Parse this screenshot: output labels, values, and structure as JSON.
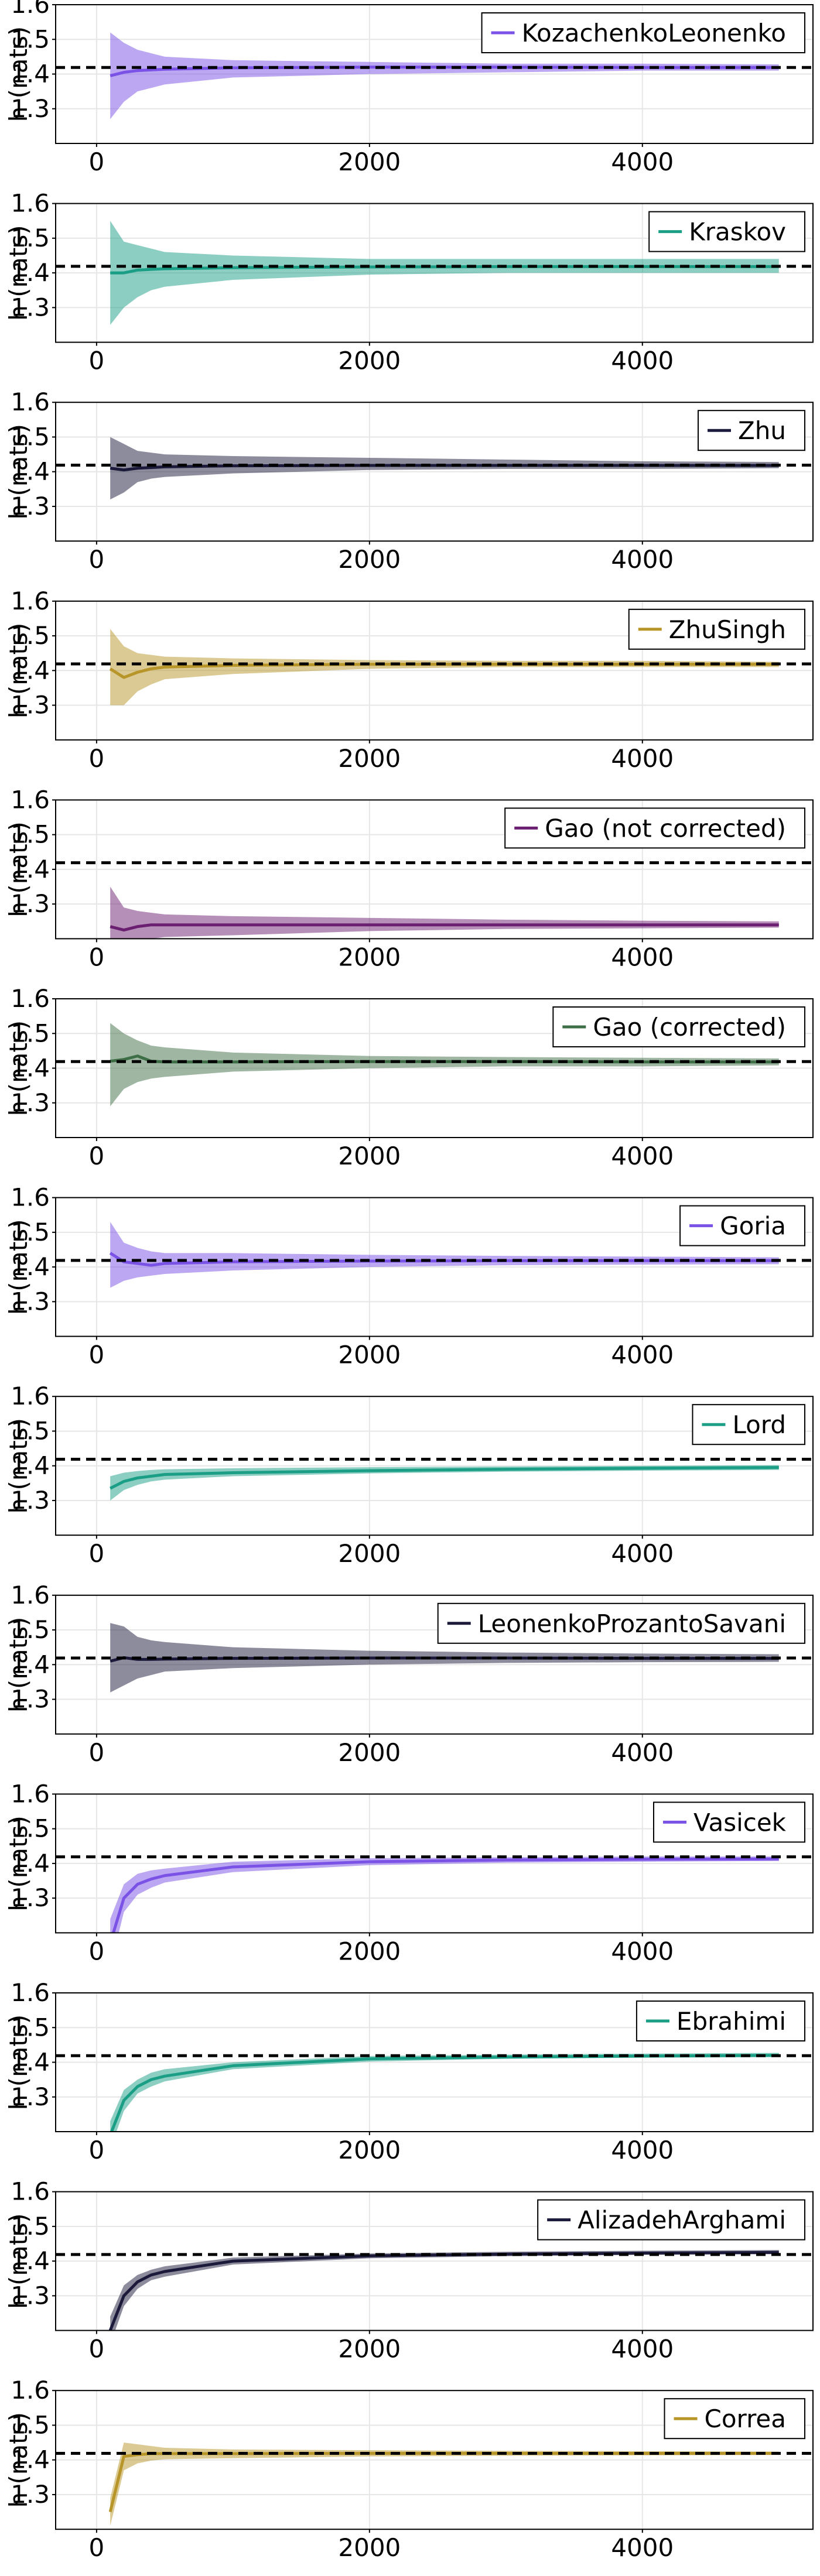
{
  "chart_data": [
    {
      "type": "line",
      "ylabel": "h (nats)",
      "xlim": [
        -300,
        5250
      ],
      "ylim": [
        1.2,
        1.6
      ],
      "x_ticks": [
        0,
        2000,
        4000
      ],
      "y_ticks": [
        1.3,
        1.4,
        1.5,
        1.6
      ],
      "grid": true,
      "legend_placement": "top-right",
      "reference_line": 1.419,
      "series": [
        {
          "name": "KozachenkoLeonenko",
          "color": "#7a52e6",
          "x": [
            100,
            200,
            300,
            400,
            500,
            1000,
            2000,
            3000,
            4000,
            5000
          ],
          "mean": [
            1.395,
            1.405,
            1.41,
            1.412,
            1.414,
            1.418,
            1.42,
            1.42,
            1.419,
            1.419
          ],
          "lower": [
            1.27,
            1.32,
            1.35,
            1.36,
            1.37,
            1.39,
            1.4,
            1.405,
            1.41,
            1.41
          ],
          "upper": [
            1.52,
            1.49,
            1.47,
            1.46,
            1.45,
            1.44,
            1.435,
            1.43,
            1.43,
            1.428
          ]
        }
      ]
    },
    {
      "type": "line",
      "ylabel": "h (nats)",
      "xlim": [
        -300,
        5250
      ],
      "ylim": [
        1.2,
        1.6
      ],
      "x_ticks": [
        0,
        2000,
        4000
      ],
      "y_ticks": [
        1.3,
        1.4,
        1.5,
        1.6
      ],
      "grid": true,
      "legend_placement": "top-right",
      "reference_line": 1.419,
      "series": [
        {
          "name": "Kraskov",
          "color": "#1a9e85",
          "x": [
            100,
            200,
            300,
            400,
            500,
            1000,
            2000,
            3000,
            4000,
            5000
          ],
          "mean": [
            1.4,
            1.4,
            1.408,
            1.41,
            1.412,
            1.415,
            1.417,
            1.418,
            1.418,
            1.418
          ],
          "lower": [
            1.25,
            1.3,
            1.33,
            1.35,
            1.36,
            1.38,
            1.395,
            1.4,
            1.4,
            1.4
          ],
          "upper": [
            1.55,
            1.49,
            1.48,
            1.47,
            1.46,
            1.45,
            1.44,
            1.44,
            1.44,
            1.44
          ]
        }
      ]
    },
    {
      "type": "line",
      "ylabel": "h (nats)",
      "xlim": [
        -300,
        5250
      ],
      "ylim": [
        1.2,
        1.6
      ],
      "x_ticks": [
        0,
        2000,
        4000
      ],
      "y_ticks": [
        1.3,
        1.4,
        1.5,
        1.6
      ],
      "grid": true,
      "legend_placement": "top-right",
      "reference_line": 1.419,
      "series": [
        {
          "name": "Zhu",
          "color": "#1c1a3b",
          "x": [
            100,
            200,
            300,
            400,
            500,
            1000,
            2000,
            3000,
            4000,
            5000
          ],
          "mean": [
            1.41,
            1.405,
            1.41,
            1.412,
            1.414,
            1.417,
            1.418,
            1.418,
            1.418,
            1.418
          ],
          "lower": [
            1.32,
            1.34,
            1.37,
            1.38,
            1.385,
            1.395,
            1.405,
            1.408,
            1.408,
            1.41
          ],
          "upper": [
            1.5,
            1.48,
            1.46,
            1.455,
            1.45,
            1.445,
            1.44,
            1.435,
            1.43,
            1.428
          ]
        }
      ]
    },
    {
      "type": "line",
      "ylabel": "h (nats)",
      "xlim": [
        -300,
        5250
      ],
      "ylim": [
        1.2,
        1.6
      ],
      "x_ticks": [
        0,
        2000,
        4000
      ],
      "y_ticks": [
        1.3,
        1.4,
        1.5,
        1.6
      ],
      "grid": true,
      "legend_placement": "top-right",
      "reference_line": 1.419,
      "series": [
        {
          "name": "ZhuSingh",
          "color": "#b89528",
          "x": [
            100,
            200,
            300,
            400,
            500,
            1000,
            2000,
            3000,
            4000,
            5000
          ],
          "mean": [
            1.405,
            1.38,
            1.395,
            1.405,
            1.41,
            1.415,
            1.418,
            1.418,
            1.418,
            1.418
          ],
          "lower": [
            1.3,
            1.3,
            1.34,
            1.36,
            1.375,
            1.39,
            1.405,
            1.41,
            1.41,
            1.41
          ],
          "upper": [
            1.52,
            1.47,
            1.45,
            1.445,
            1.44,
            1.435,
            1.43,
            1.428,
            1.428,
            1.425
          ]
        }
      ]
    },
    {
      "type": "line",
      "ylabel": "h (nats)",
      "xlim": [
        -300,
        5250
      ],
      "ylim": [
        1.2,
        1.6
      ],
      "x_ticks": [
        0,
        2000,
        4000
      ],
      "y_ticks": [
        1.3,
        1.4,
        1.5,
        1.6
      ],
      "grid": true,
      "legend_placement": "top-right",
      "reference_line": 1.419,
      "series": [
        {
          "name": "Gao (not corrected)",
          "color": "#6b1f70",
          "x": [
            100,
            200,
            300,
            400,
            500,
            1000,
            2000,
            3000,
            4000,
            5000
          ],
          "mean": [
            1.235,
            1.225,
            1.235,
            1.24,
            1.24,
            1.24,
            1.24,
            1.24,
            1.24,
            1.24
          ],
          "lower": [
            1.2,
            1.2,
            1.2,
            1.2,
            1.205,
            1.21,
            1.222,
            1.228,
            1.23,
            1.232
          ],
          "upper": [
            1.35,
            1.29,
            1.28,
            1.275,
            1.27,
            1.265,
            1.26,
            1.255,
            1.252,
            1.25
          ]
        }
      ]
    },
    {
      "type": "line",
      "ylabel": "h (nats)",
      "xlim": [
        -300,
        5250
      ],
      "ylim": [
        1.2,
        1.6
      ],
      "x_ticks": [
        0,
        2000,
        4000
      ],
      "y_ticks": [
        1.3,
        1.4,
        1.5,
        1.6
      ],
      "grid": true,
      "legend_placement": "top-right",
      "reference_line": 1.419,
      "series": [
        {
          "name": "Gao (corrected)",
          "color": "#3d6e45",
          "x": [
            100,
            200,
            300,
            400,
            500,
            1000,
            2000,
            3000,
            4000,
            5000
          ],
          "mean": [
            1.42,
            1.425,
            1.435,
            1.42,
            1.418,
            1.418,
            1.419,
            1.419,
            1.418,
            1.418
          ],
          "lower": [
            1.29,
            1.34,
            1.36,
            1.37,
            1.375,
            1.39,
            1.4,
            1.405,
            1.405,
            1.408
          ],
          "upper": [
            1.53,
            1.5,
            1.48,
            1.465,
            1.46,
            1.445,
            1.435,
            1.432,
            1.43,
            1.428
          ]
        }
      ]
    },
    {
      "type": "line",
      "ylabel": "h (nats)",
      "xlim": [
        -300,
        5250
      ],
      "ylim": [
        1.2,
        1.6
      ],
      "x_ticks": [
        0,
        2000,
        4000
      ],
      "y_ticks": [
        1.3,
        1.4,
        1.5,
        1.6
      ],
      "grid": true,
      "legend_placement": "top-right",
      "reference_line": 1.419,
      "series": [
        {
          "name": "Goria",
          "color": "#7a52e6",
          "x": [
            100,
            200,
            300,
            400,
            500,
            1000,
            2000,
            3000,
            4000,
            5000
          ],
          "mean": [
            1.44,
            1.415,
            1.41,
            1.405,
            1.41,
            1.415,
            1.417,
            1.418,
            1.418,
            1.418
          ],
          "lower": [
            1.34,
            1.36,
            1.37,
            1.375,
            1.38,
            1.39,
            1.4,
            1.405,
            1.407,
            1.408
          ],
          "upper": [
            1.53,
            1.47,
            1.455,
            1.445,
            1.44,
            1.44,
            1.435,
            1.432,
            1.43,
            1.428
          ]
        }
      ]
    },
    {
      "type": "line",
      "ylabel": "h (nats)",
      "xlim": [
        -300,
        5250
      ],
      "ylim": [
        1.2,
        1.6
      ],
      "x_ticks": [
        0,
        2000,
        4000
      ],
      "y_ticks": [
        1.3,
        1.4,
        1.5,
        1.6
      ],
      "grid": true,
      "legend_placement": "top-right",
      "reference_line": 1.419,
      "series": [
        {
          "name": "Lord",
          "color": "#1a9e85",
          "x": [
            100,
            200,
            300,
            400,
            500,
            1000,
            2000,
            3000,
            4000,
            5000
          ],
          "mean": [
            1.335,
            1.355,
            1.365,
            1.37,
            1.375,
            1.38,
            1.386,
            1.39,
            1.393,
            1.395
          ],
          "lower": [
            1.3,
            1.33,
            1.345,
            1.355,
            1.36,
            1.37,
            1.378,
            1.383,
            1.386,
            1.388
          ],
          "upper": [
            1.37,
            1.38,
            1.385,
            1.388,
            1.39,
            1.393,
            1.396,
            1.398,
            1.4,
            1.402
          ]
        }
      ]
    },
    {
      "type": "line",
      "ylabel": "h (nats)",
      "xlim": [
        -300,
        5250
      ],
      "ylim": [
        1.2,
        1.6
      ],
      "x_ticks": [
        0,
        2000,
        4000
      ],
      "y_ticks": [
        1.3,
        1.4,
        1.5,
        1.6
      ],
      "grid": true,
      "legend_placement": "top-right",
      "reference_line": 1.419,
      "series": [
        {
          "name": "LeonenkoProzantoSavani",
          "color": "#1c1a3b",
          "x": [
            100,
            200,
            300,
            400,
            500,
            1000,
            2000,
            3000,
            4000,
            5000
          ],
          "mean": [
            1.41,
            1.42,
            1.415,
            1.415,
            1.416,
            1.418,
            1.419,
            1.419,
            1.418,
            1.418
          ],
          "lower": [
            1.32,
            1.34,
            1.36,
            1.37,
            1.38,
            1.39,
            1.4,
            1.405,
            1.407,
            1.408
          ],
          "upper": [
            1.52,
            1.51,
            1.48,
            1.47,
            1.465,
            1.45,
            1.44,
            1.435,
            1.432,
            1.43
          ]
        }
      ]
    },
    {
      "type": "line",
      "ylabel": "h (nats)",
      "xlim": [
        -300,
        5250
      ],
      "ylim": [
        1.2,
        1.6
      ],
      "x_ticks": [
        0,
        2000,
        4000
      ],
      "y_ticks": [
        1.3,
        1.4,
        1.5,
        1.6
      ],
      "grid": true,
      "legend_placement": "top-right",
      "reference_line": 1.419,
      "series": [
        {
          "name": "Vasicek",
          "color": "#7a52e6",
          "x": [
            100,
            200,
            300,
            400,
            500,
            1000,
            2000,
            3000,
            4000,
            5000
          ],
          "mean": [
            1.17,
            1.3,
            1.34,
            1.355,
            1.365,
            1.39,
            1.405,
            1.41,
            1.412,
            1.413
          ],
          "lower": [
            1.1,
            1.26,
            1.31,
            1.33,
            1.345,
            1.375,
            1.395,
            1.402,
            1.405,
            1.407
          ],
          "upper": [
            1.24,
            1.34,
            1.37,
            1.38,
            1.385,
            1.405,
            1.415,
            1.418,
            1.42,
            1.42
          ]
        }
      ]
    },
    {
      "type": "line",
      "ylabel": "h (nats)",
      "xlim": [
        -300,
        5250
      ],
      "ylim": [
        1.2,
        1.6
      ],
      "x_ticks": [
        0,
        2000,
        4000
      ],
      "y_ticks": [
        1.3,
        1.4,
        1.5,
        1.6
      ],
      "grid": true,
      "legend_placement": "top-right",
      "reference_line": 1.419,
      "series": [
        {
          "name": "Ebrahimi",
          "color": "#1a9e85",
          "x": [
            100,
            200,
            300,
            400,
            500,
            1000,
            2000,
            3000,
            4000,
            5000
          ],
          "mean": [
            1.19,
            1.29,
            1.33,
            1.35,
            1.36,
            1.39,
            1.41,
            1.415,
            1.418,
            1.42
          ],
          "lower": [
            1.15,
            1.26,
            1.31,
            1.33,
            1.345,
            1.38,
            1.402,
            1.41,
            1.413,
            1.415
          ],
          "upper": [
            1.23,
            1.32,
            1.35,
            1.37,
            1.38,
            1.4,
            1.418,
            1.422,
            1.425,
            1.427
          ]
        }
      ]
    },
    {
      "type": "line",
      "ylabel": "h (nats)",
      "xlim": [
        -300,
        5250
      ],
      "ylim": [
        1.2,
        1.6
      ],
      "x_ticks": [
        0,
        2000,
        4000
      ],
      "y_ticks": [
        1.3,
        1.4,
        1.5,
        1.6
      ],
      "grid": true,
      "legend_placement": "top-right",
      "reference_line": 1.419,
      "series": [
        {
          "name": "AlizadehArghami",
          "color": "#1c1a3b",
          "x": [
            100,
            200,
            300,
            400,
            500,
            1000,
            2000,
            3000,
            4000,
            5000
          ],
          "mean": [
            1.2,
            1.3,
            1.34,
            1.36,
            1.37,
            1.4,
            1.415,
            1.42,
            1.423,
            1.425
          ],
          "lower": [
            1.16,
            1.27,
            1.32,
            1.345,
            1.355,
            1.39,
            1.408,
            1.414,
            1.418,
            1.42
          ],
          "upper": [
            1.24,
            1.33,
            1.36,
            1.375,
            1.385,
            1.41,
            1.422,
            1.427,
            1.43,
            1.432
          ]
        }
      ]
    },
    {
      "type": "line",
      "ylabel": "h (nats)",
      "xlim": [
        -300,
        5250
      ],
      "ylim": [
        1.2,
        1.6
      ],
      "x_ticks": [
        0,
        2000,
        4000
      ],
      "y_ticks": [
        1.3,
        1.4,
        1.5,
        1.6
      ],
      "grid": true,
      "legend_placement": "top-right",
      "reference_line": 1.419,
      "series": [
        {
          "name": "Correa",
          "color": "#b89528",
          "x": [
            100,
            200,
            300,
            400,
            500,
            1000,
            2000,
            3000,
            4000,
            5000
          ],
          "mean": [
            1.25,
            1.41,
            1.415,
            1.418,
            1.418,
            1.418,
            1.419,
            1.419,
            1.419,
            1.419
          ],
          "lower": [
            1.21,
            1.37,
            1.39,
            1.398,
            1.402,
            1.405,
            1.41,
            1.412,
            1.413,
            1.414
          ],
          "upper": [
            1.29,
            1.45,
            1.445,
            1.44,
            1.435,
            1.43,
            1.428,
            1.426,
            1.425,
            1.424
          ]
        }
      ]
    }
  ]
}
